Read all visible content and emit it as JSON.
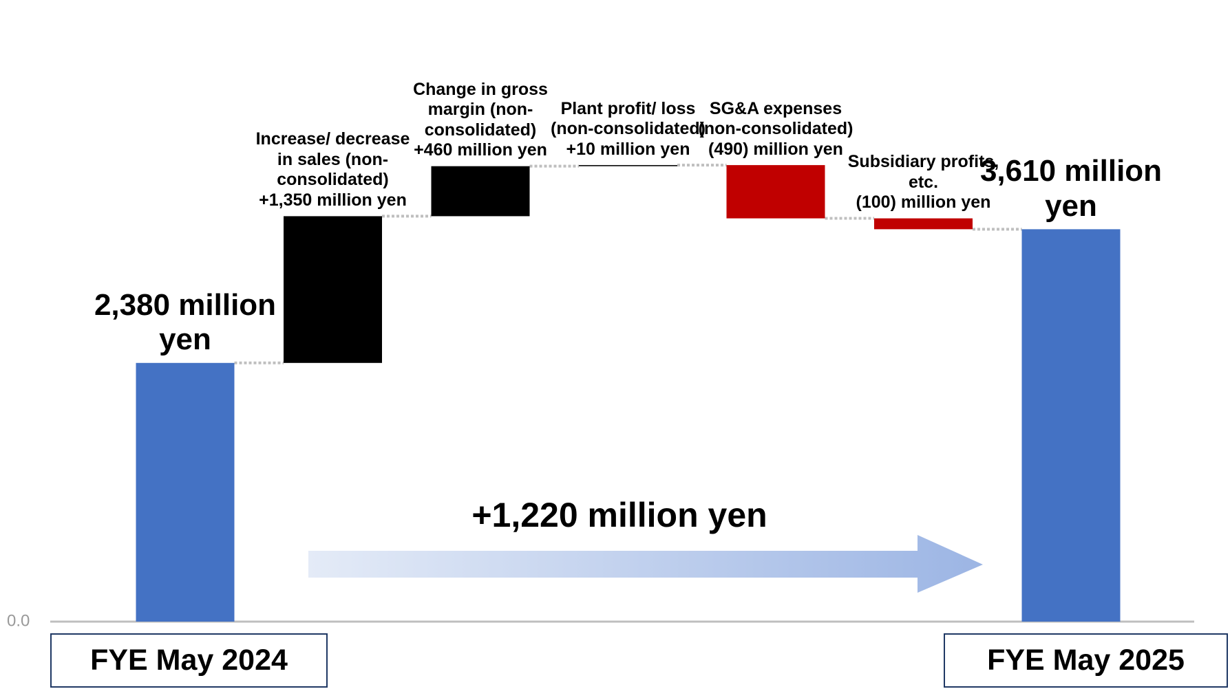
{
  "chart_data": {
    "type": "waterfall",
    "categories": [
      "FYE May 2024",
      "Increase/ decrease in sales (non-consolidated)",
      "Change in gross margin (non-consolidated)",
      "Plant profit/ loss (non-consolidated)",
      "SG&A expenses (non-consolidated)",
      "Subsidiary profits, etc.",
      "FYE May 2025"
    ],
    "values": [
      2380,
      1350,
      460,
      10,
      -490,
      -100,
      3610
    ],
    "value_labels": [
      "2,380 million yen",
      "+1,350 million yen",
      "+460 million yen",
      "+10 million yen",
      "(490) million yen",
      "(100) million yen",
      "3,610 million yen"
    ],
    "colors": [
      "#4472c4",
      "#000000",
      "#000000",
      "#000000",
      "#c00000",
      "#c00000",
      "#4472c4"
    ],
    "ylim": [
      0,
      5700
    ],
    "yticks": [
      {
        "value": 0,
        "label": "0.0"
      }
    ],
    "annotation": "+1,220 million yen"
  }
}
